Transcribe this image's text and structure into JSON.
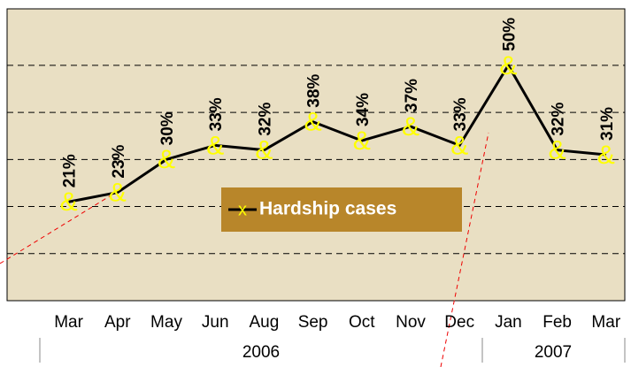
{
  "chart_data": {
    "type": "line",
    "categories": [
      "Mar",
      "Apr",
      "May",
      "Jun",
      "Aug",
      "Sep",
      "Oct",
      "Nov",
      "Dec",
      "Jan",
      "Feb",
      "Mar"
    ],
    "year_labels": [
      "2006",
      "2007"
    ],
    "series": [
      {
        "name": "Hardship cases",
        "color": "#000000",
        "marker_color": "#ffff00",
        "values": [
          21,
          23,
          30,
          33,
          32,
          38,
          34,
          37,
          33,
          50,
          32,
          31
        ],
        "value_labels": [
          "21%",
          "23%",
          "30%",
          "33%",
          "32%",
          "38%",
          "34%",
          "37%",
          "33%",
          "50%",
          "32%",
          "31%"
        ]
      }
    ],
    "ylim": [
      0,
      62
    ],
    "yticks": [
      10,
      20,
      30,
      40,
      50
    ],
    "grid": true
  }
}
